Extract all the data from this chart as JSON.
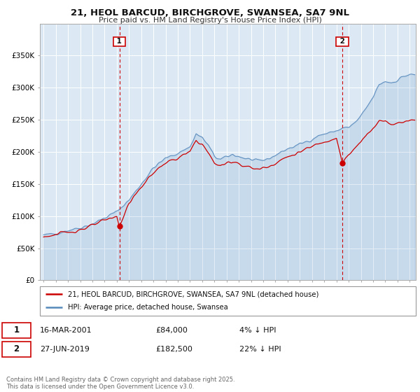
{
  "title1": "21, HEOL BARCUD, BIRCHGROVE, SWANSEA, SA7 9NL",
  "title2": "Price paid vs. HM Land Registry's House Price Index (HPI)",
  "legend_line1": "21, HEOL BARCUD, BIRCHGROVE, SWANSEA, SA7 9NL (detached house)",
  "legend_line2": "HPI: Average price, detached house, Swansea",
  "sale1_label": "1",
  "sale1_date": "16-MAR-2001",
  "sale1_price": "£84,000",
  "sale1_hpi": "4% ↓ HPI",
  "sale1_year": 2001.21,
  "sale1_value": 84000,
  "sale2_label": "2",
  "sale2_date": "27-JUN-2019",
  "sale2_price": "£182,500",
  "sale2_hpi": "22% ↓ HPI",
  "sale2_year": 2019.49,
  "sale2_value": 182500,
  "ylim": [
    0,
    400000
  ],
  "yticks": [
    0,
    50000,
    100000,
    150000,
    200000,
    250000,
    300000,
    350000
  ],
  "xlim_start": 1994.7,
  "xlim_end": 2025.5,
  "background_color": "#ffffff",
  "plot_bg_color": "#dce9f5",
  "grid_color": "#ffffff",
  "red_line_color": "#cc0000",
  "blue_line_color": "#5588bb",
  "vline_color": "#cc0000",
  "copyright_text": "Contains HM Land Registry data © Crown copyright and database right 2025.\nThis data is licensed under the Open Government Licence v3.0."
}
